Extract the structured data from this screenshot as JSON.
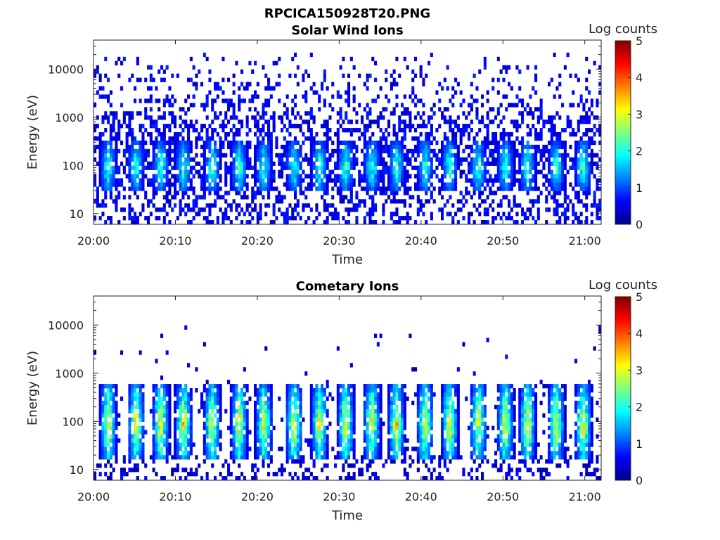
{
  "figure": {
    "title": "RPCICA150928T20.PNG"
  },
  "chart_data": [
    {
      "type": "heatmap",
      "title": "Solar Wind Ions",
      "xlabel": "Time",
      "ylabel": "Energy (eV)",
      "x_ticks": [
        "20:00",
        "20:10",
        "20:20",
        "20:30",
        "20:40",
        "20:50",
        "21:00"
      ],
      "x_range": [
        "20:00",
        "21:02"
      ],
      "y_ticks": [
        "10",
        "100",
        "1000",
        "10000"
      ],
      "y_scale": "log",
      "y_range": [
        6,
        40000
      ],
      "colorbar": {
        "label": "Log counts",
        "ticks": [
          "0",
          "1",
          "2",
          "3",
          "4",
          "5"
        ],
        "range": [
          0,
          5
        ],
        "colormap": "jet"
      },
      "bursts_minutes": [
        1.8,
        5.2,
        8.2,
        11.0,
        14.5,
        17.8,
        20.8,
        24.5,
        27.6,
        30.8,
        34.0,
        37.0,
        40.5,
        43.5,
        47.0,
        50.3,
        53.0,
        56.5,
        59.8
      ],
      "burst_energy_range_eV": [
        30,
        300
      ],
      "burst_peak_log_counts": 2.0,
      "background_energy_range_eV": [
        6,
        20000
      ],
      "background_log_counts": 0.3
    },
    {
      "type": "heatmap",
      "title": "Cometary Ions",
      "xlabel": "Time",
      "ylabel": "Energy (eV)",
      "x_ticks": [
        "20:00",
        "20:10",
        "20:20",
        "20:30",
        "20:40",
        "20:50",
        "21:00"
      ],
      "x_range": [
        "20:00",
        "21:02"
      ],
      "y_ticks": [
        "10",
        "100",
        "1000",
        "10000"
      ],
      "y_scale": "log",
      "y_range": [
        6,
        40000
      ],
      "colorbar": {
        "label": "Log counts",
        "ticks": [
          "0",
          "1",
          "2",
          "3",
          "4",
          "5"
        ],
        "range": [
          0,
          5
        ],
        "colormap": "jet"
      },
      "bursts_minutes": [
        1.8,
        5.2,
        8.2,
        11.0,
        14.5,
        17.8,
        20.8,
        24.5,
        27.6,
        30.8,
        34.0,
        37.0,
        40.5,
        43.5,
        47.0,
        50.3,
        53.0,
        56.5,
        59.8
      ],
      "burst_energy_range_eV": [
        15,
        550
      ],
      "burst_peak_log_counts": 3.0,
      "burst_peak_energy_eV": 90,
      "background_energy_range_eV": [
        6,
        15000
      ],
      "background_log_counts": 0.2
    }
  ]
}
